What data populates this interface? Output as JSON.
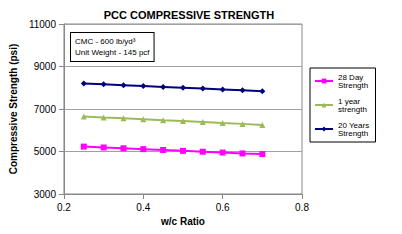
{
  "chart_data": {
    "type": "line",
    "title": "PCC COMPRESSIVE STRENGTH",
    "x_label": "w/c Ratio",
    "y_label": "Compressive Strength (psi)",
    "annotations": [
      "CMC - 600 lb/yd³",
      "Unit Weight - 145 pcf"
    ],
    "x": [
      0.25,
      0.3,
      0.35,
      0.4,
      0.45,
      0.5,
      0.55,
      0.6,
      0.65,
      0.7
    ],
    "series": [
      {
        "name": "28 Day Strength",
        "color": "#ff00ff",
        "marker": "square",
        "values": [
          5230,
          5190,
          5150,
          5110,
          5070,
          5030,
          4990,
          4950,
          4910,
          4880
        ]
      },
      {
        "name": "1 year strength",
        "color": "#9bbb59",
        "marker": "triangle",
        "values": [
          6650,
          6600,
          6560,
          6520,
          6470,
          6430,
          6390,
          6340,
          6300,
          6250
        ]
      },
      {
        "name": "20 Years Strength",
        "color": "#000080",
        "marker": "diamond",
        "values": [
          8200,
          8160,
          8120,
          8080,
          8040,
          8000,
          7960,
          7920,
          7880,
          7840
        ]
      }
    ],
    "xlim": [
      0.2,
      0.8
    ],
    "xticks": [
      0.2,
      0.4,
      0.6,
      0.8
    ],
    "ylim": [
      3000,
      11000
    ],
    "yticks": [
      3000,
      5000,
      7000,
      9000,
      11000
    ],
    "grid": true,
    "legend": "right"
  }
}
